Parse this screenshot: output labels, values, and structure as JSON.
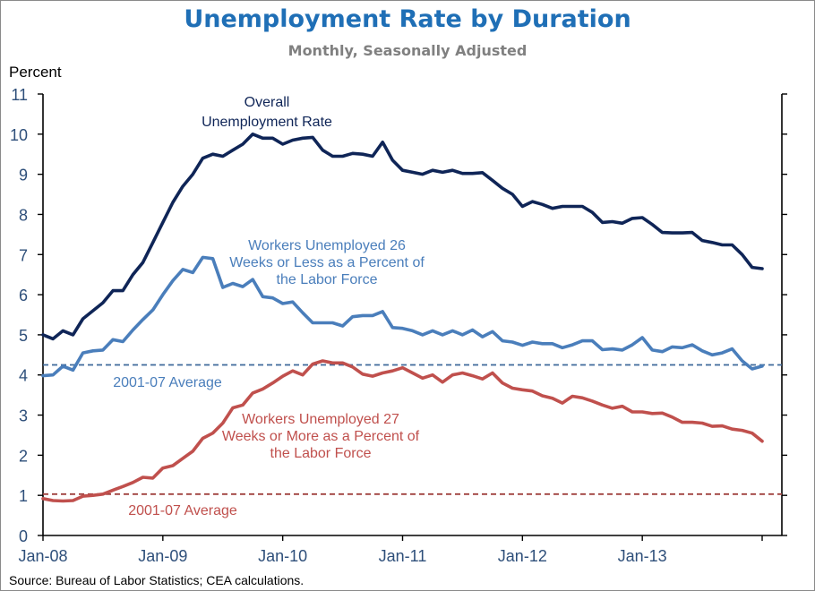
{
  "chart_data": {
    "type": "line",
    "title": "Unemployment Rate by Duration",
    "subtitle": "Monthly, Seasonally Adjusted",
    "ylabel": "Percent",
    "xlabel": "",
    "ylim": [
      0,
      11
    ],
    "yticks": [
      "0",
      "1",
      "2",
      "3",
      "4",
      "5",
      "6",
      "7",
      "8",
      "9",
      "10",
      "11"
    ],
    "x_start": "Jan-08",
    "x_end": "Jan-14",
    "xticks": [
      {
        "label": "Jan-08",
        "month_index": 0
      },
      {
        "label": "Jan-09",
        "month_index": 12
      },
      {
        "label": "Jan-10",
        "month_index": 24
      },
      {
        "label": "Jan-11",
        "month_index": 36
      },
      {
        "label": "Jan-12",
        "month_index": 48
      },
      {
        "label": "Jan-13",
        "month_index": 60
      },
      {
        "label": "",
        "month_index": 72
      }
    ],
    "grid": false,
    "legend": "none (inline annotations)",
    "source": "Source: Bureau of Labor Statistics; CEA calculations.",
    "series": [
      {
        "name": "Overall Unemployment Rate",
        "color": "#0f2557",
        "annotation": [
          "Overall",
          "Unemployment Rate"
        ],
        "values": [
          5.0,
          4.9,
          5.1,
          5.0,
          5.4,
          5.6,
          5.8,
          6.1,
          6.1,
          6.5,
          6.8,
          7.3,
          7.8,
          8.3,
          8.7,
          9.0,
          9.4,
          9.5,
          9.45,
          9.6,
          9.75,
          10.0,
          9.9,
          9.9,
          9.75,
          9.85,
          9.9,
          9.92,
          9.6,
          9.45,
          9.45,
          9.52,
          9.5,
          9.45,
          9.8,
          9.35,
          9.1,
          9.05,
          9.0,
          9.1,
          9.05,
          9.1,
          9.02,
          9.02,
          9.04,
          8.85,
          8.65,
          8.5,
          8.2,
          8.32,
          8.25,
          8.15,
          8.2,
          8.2,
          8.2,
          8.05,
          7.8,
          7.82,
          7.78,
          7.9,
          7.92,
          7.75,
          7.55,
          7.54,
          7.54,
          7.55,
          7.35,
          7.3,
          7.24,
          7.24,
          7.0,
          6.68,
          6.65
        ]
      },
      {
        "name": "Workers Unemployed 26 Weeks or Less as a Percent of the Labor Force",
        "color": "#4a7ebb",
        "annotation": [
          "Workers Unemployed 26",
          "Weeks or Less as a Percent of",
          "the Labor Force"
        ],
        "values": [
          3.98,
          4.0,
          4.22,
          4.12,
          4.55,
          4.6,
          4.62,
          4.88,
          4.83,
          5.12,
          5.38,
          5.62,
          6.0,
          6.35,
          6.63,
          6.55,
          6.93,
          6.9,
          6.18,
          6.28,
          6.2,
          6.38,
          5.95,
          5.92,
          5.78,
          5.82,
          5.55,
          5.3,
          5.3,
          5.3,
          5.22,
          5.45,
          5.48,
          5.48,
          5.58,
          5.18,
          5.16,
          5.1,
          5.0,
          5.1,
          5.0,
          5.1,
          5.0,
          5.12,
          4.95,
          5.08,
          4.85,
          4.82,
          4.74,
          4.82,
          4.78,
          4.78,
          4.68,
          4.75,
          4.85,
          4.85,
          4.63,
          4.65,
          4.62,
          4.75,
          4.93,
          4.62,
          4.58,
          4.7,
          4.68,
          4.75,
          4.6,
          4.5,
          4.55,
          4.65,
          4.35,
          4.15,
          4.22
        ]
      },
      {
        "name": "Workers Unemployed 27 Weeks or More as a Percent of the Labor Force",
        "color": "#c0504d",
        "annotation": [
          "Workers Unemployed 27",
          "Weeks or More as a Percent of",
          "the Labor Force"
        ],
        "values": [
          0.92,
          0.87,
          0.86,
          0.87,
          0.98,
          1.0,
          1.03,
          1.13,
          1.22,
          1.32,
          1.45,
          1.43,
          1.68,
          1.74,
          1.92,
          2.1,
          2.42,
          2.55,
          2.8,
          3.18,
          3.25,
          3.55,
          3.65,
          3.8,
          3.97,
          4.1,
          4.0,
          4.27,
          4.35,
          4.3,
          4.3,
          4.2,
          4.02,
          3.97,
          4.05,
          4.1,
          4.18,
          4.05,
          3.92,
          4.0,
          3.82,
          4.0,
          4.05,
          3.98,
          3.9,
          4.05,
          3.8,
          3.67,
          3.63,
          3.6,
          3.48,
          3.42,
          3.3,
          3.47,
          3.43,
          3.35,
          3.25,
          3.17,
          3.22,
          3.08,
          3.08,
          3.04,
          3.05,
          2.95,
          2.82,
          2.82,
          2.8,
          2.72,
          2.73,
          2.65,
          2.62,
          2.55,
          2.35
        ]
      }
    ],
    "reference_lines": [
      {
        "name": "2001-07 Average (26 weeks or less)",
        "value": 4.25,
        "color": "#3f6a9a",
        "label": "2001-07 Average",
        "label_color": "#4a7ebb"
      },
      {
        "name": "2001-07 Average (27 weeks or more)",
        "value": 1.03,
        "color": "#a0413e",
        "label": "2001-07 Average",
        "label_color": "#c0504d"
      }
    ]
  }
}
